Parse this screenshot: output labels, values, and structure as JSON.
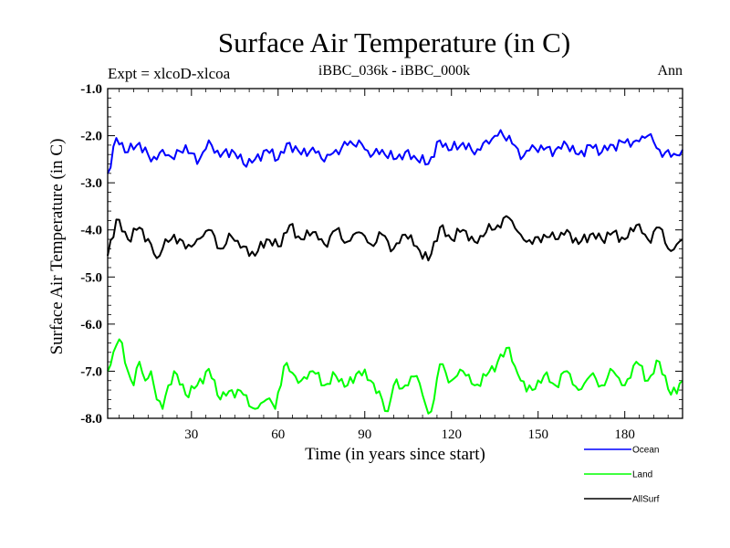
{
  "chart_data": {
    "type": "line",
    "title": "Surface Air Temperature (in C)",
    "left_label": "Expt = xlcoD-xlcoa",
    "center_label": "iBBC_036k - iBBC_000k",
    "right_label": "Ann",
    "xlabel": "Time (in years since start)",
    "ylabel": "Surface Air Temperature (in C)",
    "xlim": [
      1,
      200
    ],
    "ylim": [
      -8.0,
      -1.0
    ],
    "x_ticks": [
      30,
      60,
      90,
      120,
      150,
      180
    ],
    "x_tick_labels": [
      "30",
      "60",
      "90",
      "120",
      "150",
      "180"
    ],
    "y_ticks": [
      -8.0,
      -7.0,
      -6.0,
      -5.0,
      -4.0,
      -3.0,
      -2.0,
      -1.0
    ],
    "y_tick_labels": [
      "-8.0",
      "-7.0",
      "-6.0",
      "-5.0",
      "-4.0",
      "-3.0",
      "-2.0",
      "-1.0"
    ],
    "series": [
      {
        "name": "Ocean",
        "color": "#0000ff",
        "anchors": [
          [
            1,
            -2.8
          ],
          [
            4,
            -2.05
          ],
          [
            8,
            -2.35
          ],
          [
            12,
            -2.15
          ],
          [
            16,
            -2.55
          ],
          [
            20,
            -2.3
          ],
          [
            24,
            -2.5
          ],
          [
            28,
            -2.2
          ],
          [
            32,
            -2.6
          ],
          [
            36,
            -2.1
          ],
          [
            40,
            -2.45
          ],
          [
            44,
            -2.3
          ],
          [
            48,
            -2.6
          ],
          [
            52,
            -2.5
          ],
          [
            56,
            -2.3
          ],
          [
            60,
            -2.5
          ],
          [
            64,
            -2.15
          ],
          [
            68,
            -2.4
          ],
          [
            72,
            -2.25
          ],
          [
            76,
            -2.55
          ],
          [
            80,
            -2.3
          ],
          [
            84,
            -2.2
          ],
          [
            88,
            -2.1
          ],
          [
            92,
            -2.45
          ],
          [
            96,
            -2.3
          ],
          [
            100,
            -2.5
          ],
          [
            104,
            -2.35
          ],
          [
            108,
            -2.5
          ],
          [
            112,
            -2.6
          ],
          [
            116,
            -2.1
          ],
          [
            120,
            -2.3
          ],
          [
            124,
            -2.15
          ],
          [
            128,
            -2.4
          ],
          [
            132,
            -2.1
          ],
          [
            136,
            -2.0
          ],
          [
            140,
            -2.0
          ],
          [
            144,
            -2.5
          ],
          [
            148,
            -2.2
          ],
          [
            152,
            -2.3
          ],
          [
            156,
            -2.3
          ],
          [
            160,
            -2.2
          ],
          [
            164,
            -2.4
          ],
          [
            168,
            -2.2
          ],
          [
            172,
            -2.35
          ],
          [
            176,
            -2.2
          ],
          [
            180,
            -2.15
          ],
          [
            184,
            -2.1
          ],
          [
            188,
            -2.0
          ],
          [
            192,
            -2.3
          ],
          [
            196,
            -2.45
          ],
          [
            200,
            -2.3
          ]
        ]
      },
      {
        "name": "Land",
        "color": "#00ff00",
        "anchors": [
          [
            1,
            -7.0
          ],
          [
            4,
            -6.45
          ],
          [
            6,
            -6.4
          ],
          [
            8,
            -7.0
          ],
          [
            10,
            -7.3
          ],
          [
            12,
            -6.8
          ],
          [
            14,
            -7.2
          ],
          [
            16,
            -7.0
          ],
          [
            18,
            -7.6
          ],
          [
            20,
            -7.8
          ],
          [
            22,
            -7.3
          ],
          [
            24,
            -7.0
          ],
          [
            28,
            -7.5
          ],
          [
            32,
            -7.3
          ],
          [
            36,
            -6.95
          ],
          [
            40,
            -7.6
          ],
          [
            44,
            -7.4
          ],
          [
            48,
            -7.5
          ],
          [
            52,
            -7.8
          ],
          [
            56,
            -7.6
          ],
          [
            59,
            -7.8
          ],
          [
            62,
            -6.9
          ],
          [
            64,
            -7.0
          ],
          [
            68,
            -7.2
          ],
          [
            72,
            -7.0
          ],
          [
            76,
            -7.3
          ],
          [
            80,
            -7.1
          ],
          [
            84,
            -7.3
          ],
          [
            88,
            -7.0
          ],
          [
            92,
            -7.2
          ],
          [
            96,
            -7.6
          ],
          [
            98,
            -7.85
          ],
          [
            100,
            -7.3
          ],
          [
            104,
            -7.3
          ],
          [
            108,
            -7.1
          ],
          [
            112,
            -7.9
          ],
          [
            114,
            -7.6
          ],
          [
            116,
            -6.85
          ],
          [
            120,
            -7.2
          ],
          [
            124,
            -7.0
          ],
          [
            128,
            -7.3
          ],
          [
            132,
            -7.1
          ],
          [
            136,
            -6.8
          ],
          [
            140,
            -6.5
          ],
          [
            142,
            -6.9
          ],
          [
            144,
            -7.2
          ],
          [
            148,
            -7.4
          ],
          [
            152,
            -7.1
          ],
          [
            156,
            -7.3
          ],
          [
            160,
            -7.0
          ],
          [
            164,
            -7.4
          ],
          [
            168,
            -7.1
          ],
          [
            172,
            -7.3
          ],
          [
            176,
            -7.0
          ],
          [
            180,
            -7.3
          ],
          [
            184,
            -6.8
          ],
          [
            188,
            -7.2
          ],
          [
            192,
            -6.8
          ],
          [
            196,
            -7.5
          ],
          [
            200,
            -7.2
          ]
        ]
      },
      {
        "name": "AllSurf",
        "color": "#000000",
        "anchors": [
          [
            1,
            -4.55
          ],
          [
            4,
            -3.78
          ],
          [
            8,
            -4.2
          ],
          [
            12,
            -3.95
          ],
          [
            16,
            -4.3
          ],
          [
            18,
            -4.6
          ],
          [
            20,
            -4.4
          ],
          [
            24,
            -4.1
          ],
          [
            28,
            -4.4
          ],
          [
            32,
            -4.2
          ],
          [
            36,
            -4.0
          ],
          [
            40,
            -4.4
          ],
          [
            44,
            -4.15
          ],
          [
            48,
            -4.35
          ],
          [
            52,
            -4.55
          ],
          [
            56,
            -4.2
          ],
          [
            60,
            -4.35
          ],
          [
            64,
            -3.9
          ],
          [
            68,
            -4.2
          ],
          [
            72,
            -4.05
          ],
          [
            76,
            -4.3
          ],
          [
            80,
            -4.0
          ],
          [
            84,
            -4.25
          ],
          [
            88,
            -4.05
          ],
          [
            92,
            -4.3
          ],
          [
            96,
            -4.1
          ],
          [
            100,
            -4.4
          ],
          [
            104,
            -4.1
          ],
          [
            108,
            -4.35
          ],
          [
            112,
            -4.65
          ],
          [
            116,
            -3.95
          ],
          [
            120,
            -4.2
          ],
          [
            124,
            -4.0
          ],
          [
            128,
            -4.25
          ],
          [
            132,
            -4.05
          ],
          [
            136,
            -3.9
          ],
          [
            140,
            -3.75
          ],
          [
            144,
            -4.1
          ],
          [
            148,
            -4.3
          ],
          [
            152,
            -4.1
          ],
          [
            156,
            -4.2
          ],
          [
            160,
            -4.0
          ],
          [
            164,
            -4.3
          ],
          [
            168,
            -4.1
          ],
          [
            172,
            -4.2
          ],
          [
            176,
            -4.05
          ],
          [
            180,
            -4.2
          ],
          [
            184,
            -3.9
          ],
          [
            188,
            -4.2
          ],
          [
            192,
            -3.95
          ],
          [
            196,
            -4.45
          ],
          [
            200,
            -4.2
          ]
        ]
      }
    ]
  }
}
